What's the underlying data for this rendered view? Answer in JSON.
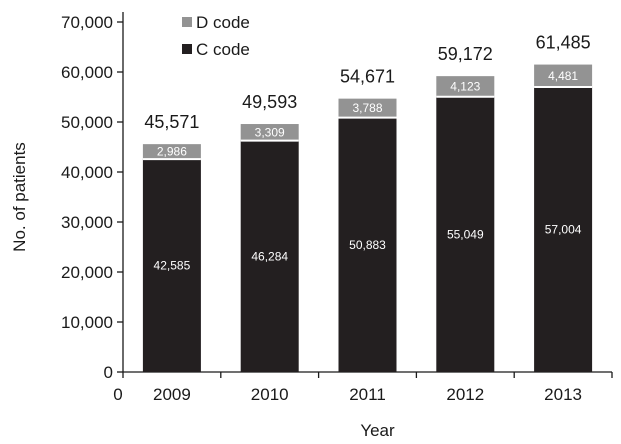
{
  "chart_data": {
    "type": "bar",
    "stacked": true,
    "categories": [
      "2009",
      "2010",
      "2011",
      "2012",
      "2013"
    ],
    "series": [
      {
        "name": "C code",
        "values": [
          42585,
          46284,
          50883,
          55049,
          57004
        ],
        "color": "#231f20",
        "labels": [
          "42,585",
          "46,284",
          "50,883",
          "55,049",
          "57,004"
        ]
      },
      {
        "name": "D code",
        "values": [
          2986,
          3309,
          3788,
          4123,
          4481
        ],
        "color": "#939393",
        "labels": [
          "2,986",
          "3,309",
          "3,788",
          "4,123",
          "4,481"
        ]
      }
    ],
    "totals": [
      45571,
      49593,
      54671,
      59172,
      61485
    ],
    "total_labels": [
      "45,571",
      "49,593",
      "54,671",
      "59,172",
      "61,485"
    ],
    "xlabel": "Year",
    "ylabel": "No. of patients",
    "ylim": [
      0,
      70000
    ],
    "yticks": [
      0,
      10000,
      20000,
      30000,
      40000,
      50000,
      60000,
      70000
    ],
    "ytick_labels": [
      "0",
      "10,000",
      "20,000",
      "30,000",
      "40,000",
      "50,000",
      "60,000",
      "70,000"
    ],
    "x_origin_label": "0",
    "legend": {
      "placement": "top-left",
      "entries": [
        {
          "label": "D code",
          "color": "#939393"
        },
        {
          "label": "C code",
          "color": "#231f20"
        }
      ]
    },
    "grid": false
  }
}
